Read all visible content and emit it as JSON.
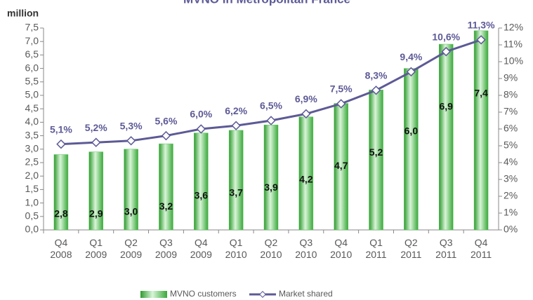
{
  "chart_data": {
    "type": "bar_line",
    "title": "MVNO in Metropolitan France",
    "y_label": "million",
    "categories": [
      "Q4 2008",
      "Q1 2009",
      "Q2 2009",
      "Q3 2009",
      "Q4 2009",
      "Q1 2010",
      "Q2 2010",
      "Q3 2010",
      "Q4 2010",
      "Q1 2011",
      "Q2 2011",
      "Q3 2011",
      "Q4 2011"
    ],
    "series": [
      {
        "name": "MVNO customers",
        "type": "bar",
        "color": "#5cc35c",
        "values": [
          2.8,
          2.9,
          3.0,
          3.2,
          3.6,
          3.7,
          3.9,
          4.2,
          4.7,
          5.2,
          6.0,
          6.9,
          7.4
        ],
        "value_labels": [
          "2,8",
          "2,9",
          "3,0",
          "3,2",
          "3,6",
          "3,7",
          "3,9",
          "4,2",
          "4,7",
          "5,2",
          "6,0",
          "6,9",
          "7,4"
        ]
      },
      {
        "name": "Market shared",
        "type": "line",
        "axis": "y2",
        "color": "#5d5a96",
        "values": [
          5.1,
          5.2,
          5.3,
          5.6,
          6.0,
          6.2,
          6.5,
          6.9,
          7.5,
          8.3,
          9.4,
          10.6,
          11.3
        ],
        "value_labels": [
          "5,1%",
          "5,2%",
          "5,3%",
          "5,6%",
          "6,0%",
          "6,2%",
          "6,5%",
          "6,9%",
          "7,5%",
          "8,3%",
          "9,4%",
          "10,6%",
          "11,3%"
        ]
      }
    ],
    "ylim": [
      0,
      7.5
    ],
    "yticks": [
      {
        "value": 0,
        "label": "0,0"
      },
      {
        "value": 0.5,
        "label": "0,5"
      },
      {
        "value": 1,
        "label": "1,0"
      },
      {
        "value": 1.5,
        "label": "1,5"
      },
      {
        "value": 2,
        "label": "2,0"
      },
      {
        "value": 2.5,
        "label": "2,5"
      },
      {
        "value": 3,
        "label": "3,0"
      },
      {
        "value": 3.5,
        "label": "3,5"
      },
      {
        "value": 4,
        "label": "4,0"
      },
      {
        "value": 4.5,
        "label": "4,5"
      },
      {
        "value": 5,
        "label": "5,0"
      },
      {
        "value": 5.5,
        "label": "5,5"
      },
      {
        "value": 6,
        "label": "6,0"
      },
      {
        "value": 6.5,
        "label": "6,5"
      },
      {
        "value": 7,
        "label": "7,0"
      },
      {
        "value": 7.5,
        "label": "7,5"
      }
    ],
    "y2lim": [
      0,
      12
    ],
    "y2ticks": [
      {
        "value": 0,
        "label": "0%"
      },
      {
        "value": 1,
        "label": "1%"
      },
      {
        "value": 2,
        "label": "2%"
      },
      {
        "value": 3,
        "label": "3%"
      },
      {
        "value": 4,
        "label": "4%"
      },
      {
        "value": 5,
        "label": "5%"
      },
      {
        "value": 6,
        "label": "6%"
      },
      {
        "value": 7,
        "label": "7%"
      },
      {
        "value": 8,
        "label": "8%"
      },
      {
        "value": 9,
        "label": "9%"
      },
      {
        "value": 10,
        "label": "10%"
      },
      {
        "value": 11,
        "label": "11%"
      },
      {
        "value": 12,
        "label": "12%"
      }
    ],
    "grid": false,
    "legend": "bottom"
  }
}
